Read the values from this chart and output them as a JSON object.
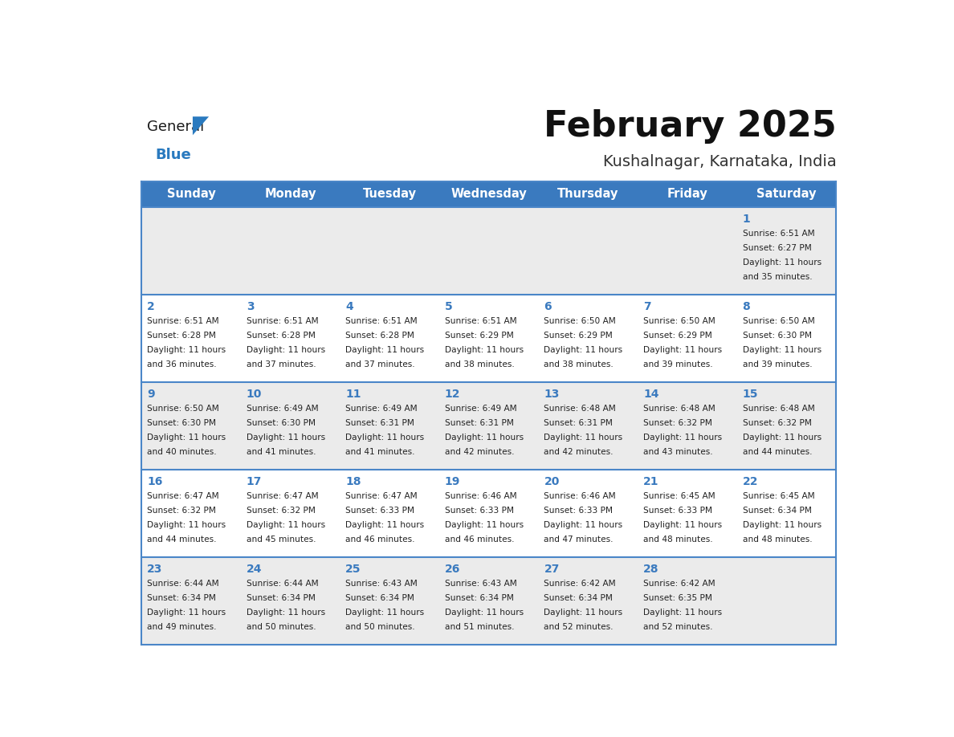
{
  "title": "February 2025",
  "subtitle": "Kushalnagar, Karnataka, India",
  "header_bg": "#3a7abf",
  "header_text": "#ffffff",
  "row_bg_even": "#ebebeb",
  "row_bg_odd": "#ffffff",
  "border_color": "#4a86c8",
  "day_headers": [
    "Sunday",
    "Monday",
    "Tuesday",
    "Wednesday",
    "Thursday",
    "Friday",
    "Saturday"
  ],
  "days": [
    {
      "day": 1,
      "col": 6,
      "row": 0,
      "sunrise": "6:51 AM",
      "sunset": "6:27 PM",
      "daylight_h": "11 hours",
      "daylight_m": "35 minutes"
    },
    {
      "day": 2,
      "col": 0,
      "row": 1,
      "sunrise": "6:51 AM",
      "sunset": "6:28 PM",
      "daylight_h": "11 hours",
      "daylight_m": "36 minutes"
    },
    {
      "day": 3,
      "col": 1,
      "row": 1,
      "sunrise": "6:51 AM",
      "sunset": "6:28 PM",
      "daylight_h": "11 hours",
      "daylight_m": "37 minutes"
    },
    {
      "day": 4,
      "col": 2,
      "row": 1,
      "sunrise": "6:51 AM",
      "sunset": "6:28 PM",
      "daylight_h": "11 hours",
      "daylight_m": "37 minutes"
    },
    {
      "day": 5,
      "col": 3,
      "row": 1,
      "sunrise": "6:51 AM",
      "sunset": "6:29 PM",
      "daylight_h": "11 hours",
      "daylight_m": "38 minutes"
    },
    {
      "day": 6,
      "col": 4,
      "row": 1,
      "sunrise": "6:50 AM",
      "sunset": "6:29 PM",
      "daylight_h": "11 hours",
      "daylight_m": "38 minutes"
    },
    {
      "day": 7,
      "col": 5,
      "row": 1,
      "sunrise": "6:50 AM",
      "sunset": "6:29 PM",
      "daylight_h": "11 hours",
      "daylight_m": "39 minutes"
    },
    {
      "day": 8,
      "col": 6,
      "row": 1,
      "sunrise": "6:50 AM",
      "sunset": "6:30 PM",
      "daylight_h": "11 hours",
      "daylight_m": "39 minutes"
    },
    {
      "day": 9,
      "col": 0,
      "row": 2,
      "sunrise": "6:50 AM",
      "sunset": "6:30 PM",
      "daylight_h": "11 hours",
      "daylight_m": "40 minutes"
    },
    {
      "day": 10,
      "col": 1,
      "row": 2,
      "sunrise": "6:49 AM",
      "sunset": "6:30 PM",
      "daylight_h": "11 hours",
      "daylight_m": "41 minutes"
    },
    {
      "day": 11,
      "col": 2,
      "row": 2,
      "sunrise": "6:49 AM",
      "sunset": "6:31 PM",
      "daylight_h": "11 hours",
      "daylight_m": "41 minutes"
    },
    {
      "day": 12,
      "col": 3,
      "row": 2,
      "sunrise": "6:49 AM",
      "sunset": "6:31 PM",
      "daylight_h": "11 hours",
      "daylight_m": "42 minutes"
    },
    {
      "day": 13,
      "col": 4,
      "row": 2,
      "sunrise": "6:48 AM",
      "sunset": "6:31 PM",
      "daylight_h": "11 hours",
      "daylight_m": "42 minutes"
    },
    {
      "day": 14,
      "col": 5,
      "row": 2,
      "sunrise": "6:48 AM",
      "sunset": "6:32 PM",
      "daylight_h": "11 hours",
      "daylight_m": "43 minutes"
    },
    {
      "day": 15,
      "col": 6,
      "row": 2,
      "sunrise": "6:48 AM",
      "sunset": "6:32 PM",
      "daylight_h": "11 hours",
      "daylight_m": "44 minutes"
    },
    {
      "day": 16,
      "col": 0,
      "row": 3,
      "sunrise": "6:47 AM",
      "sunset": "6:32 PM",
      "daylight_h": "11 hours",
      "daylight_m": "44 minutes"
    },
    {
      "day": 17,
      "col": 1,
      "row": 3,
      "sunrise": "6:47 AM",
      "sunset": "6:32 PM",
      "daylight_h": "11 hours",
      "daylight_m": "45 minutes"
    },
    {
      "day": 18,
      "col": 2,
      "row": 3,
      "sunrise": "6:47 AM",
      "sunset": "6:33 PM",
      "daylight_h": "11 hours",
      "daylight_m": "46 minutes"
    },
    {
      "day": 19,
      "col": 3,
      "row": 3,
      "sunrise": "6:46 AM",
      "sunset": "6:33 PM",
      "daylight_h": "11 hours",
      "daylight_m": "46 minutes"
    },
    {
      "day": 20,
      "col": 4,
      "row": 3,
      "sunrise": "6:46 AM",
      "sunset": "6:33 PM",
      "daylight_h": "11 hours",
      "daylight_m": "47 minutes"
    },
    {
      "day": 21,
      "col": 5,
      "row": 3,
      "sunrise": "6:45 AM",
      "sunset": "6:33 PM",
      "daylight_h": "11 hours",
      "daylight_m": "48 minutes"
    },
    {
      "day": 22,
      "col": 6,
      "row": 3,
      "sunrise": "6:45 AM",
      "sunset": "6:34 PM",
      "daylight_h": "11 hours",
      "daylight_m": "48 minutes"
    },
    {
      "day": 23,
      "col": 0,
      "row": 4,
      "sunrise": "6:44 AM",
      "sunset": "6:34 PM",
      "daylight_h": "11 hours",
      "daylight_m": "49 minutes"
    },
    {
      "day": 24,
      "col": 1,
      "row": 4,
      "sunrise": "6:44 AM",
      "sunset": "6:34 PM",
      "daylight_h": "11 hours",
      "daylight_m": "50 minutes"
    },
    {
      "day": 25,
      "col": 2,
      "row": 4,
      "sunrise": "6:43 AM",
      "sunset": "6:34 PM",
      "daylight_h": "11 hours",
      "daylight_m": "50 minutes"
    },
    {
      "day": 26,
      "col": 3,
      "row": 4,
      "sunrise": "6:43 AM",
      "sunset": "6:34 PM",
      "daylight_h": "11 hours",
      "daylight_m": "51 minutes"
    },
    {
      "day": 27,
      "col": 4,
      "row": 4,
      "sunrise": "6:42 AM",
      "sunset": "6:34 PM",
      "daylight_h": "11 hours",
      "daylight_m": "52 minutes"
    },
    {
      "day": 28,
      "col": 5,
      "row": 4,
      "sunrise": "6:42 AM",
      "sunset": "6:35 PM",
      "daylight_h": "11 hours",
      "daylight_m": "52 minutes"
    }
  ],
  "num_rows": 5,
  "num_cols": 7,
  "cell_text_color": "#222222",
  "day_num_color": "#3a7abf",
  "logo_color_general": "#1a1a1a",
  "logo_color_blue": "#2a7abf",
  "logo_triangle_color": "#2a7abf"
}
